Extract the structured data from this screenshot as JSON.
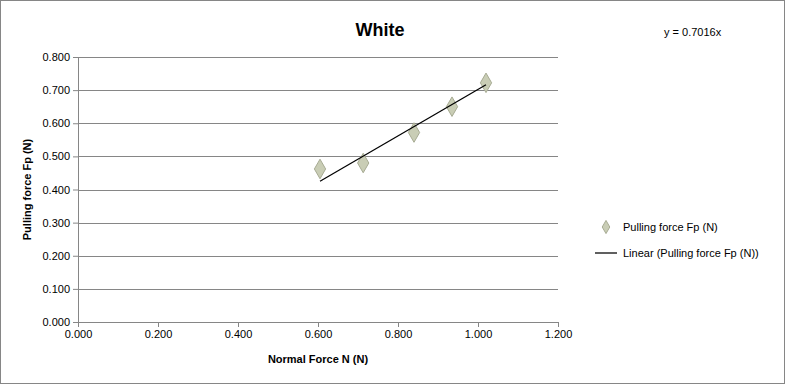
{
  "chart_data": {
    "type": "scatter",
    "title": "White",
    "annotations": [
      "y = 0.7016x"
    ],
    "x_label": "Normal Force N (N)",
    "y_label": "Pulling force Fp (N)",
    "xlim": [
      0,
      1.2
    ],
    "ylim": [
      0,
      0.8
    ],
    "xticks": [
      {
        "value": 0,
        "label": "0.000"
      },
      {
        "value": 0.2,
        "label": "0.200"
      },
      {
        "value": 0.4,
        "label": "0.400"
      },
      {
        "value": 0.6,
        "label": "0.600"
      },
      {
        "value": 0.8,
        "label": "0.800"
      },
      {
        "value": 1.0,
        "label": "1.000"
      },
      {
        "value": 1.2,
        "label": "1.200"
      }
    ],
    "yticks": [
      {
        "value": 0,
        "label": "0.000"
      },
      {
        "value": 0.1,
        "label": "0.100"
      },
      {
        "value": 0.2,
        "label": "0.200"
      },
      {
        "value": 0.3,
        "label": "0.300"
      },
      {
        "value": 0.4,
        "label": "0.400"
      },
      {
        "value": 0.5,
        "label": "0.500"
      },
      {
        "value": 0.6,
        "label": "0.600"
      },
      {
        "value": 0.7,
        "label": "0.700"
      },
      {
        "value": 0.8,
        "label": "0.800"
      }
    ],
    "grid": true,
    "legend": "right",
    "series": [
      {
        "name": "Pulling force Fp (N)",
        "type": "scatter",
        "marker": "diamond",
        "color": "#c9cdb5",
        "x": [
          0.605,
          0.713,
          0.84,
          0.935,
          1.02
        ],
        "values": [
          0.462,
          0.48,
          0.572,
          0.65,
          0.722
        ]
      },
      {
        "name": "Linear (Pulling force Fp (N))",
        "type": "line",
        "line_style": "solid",
        "color": "#000000",
        "x": [
          0.605,
          1.02
        ],
        "values": [
          0.425,
          0.716
        ]
      }
    ]
  }
}
